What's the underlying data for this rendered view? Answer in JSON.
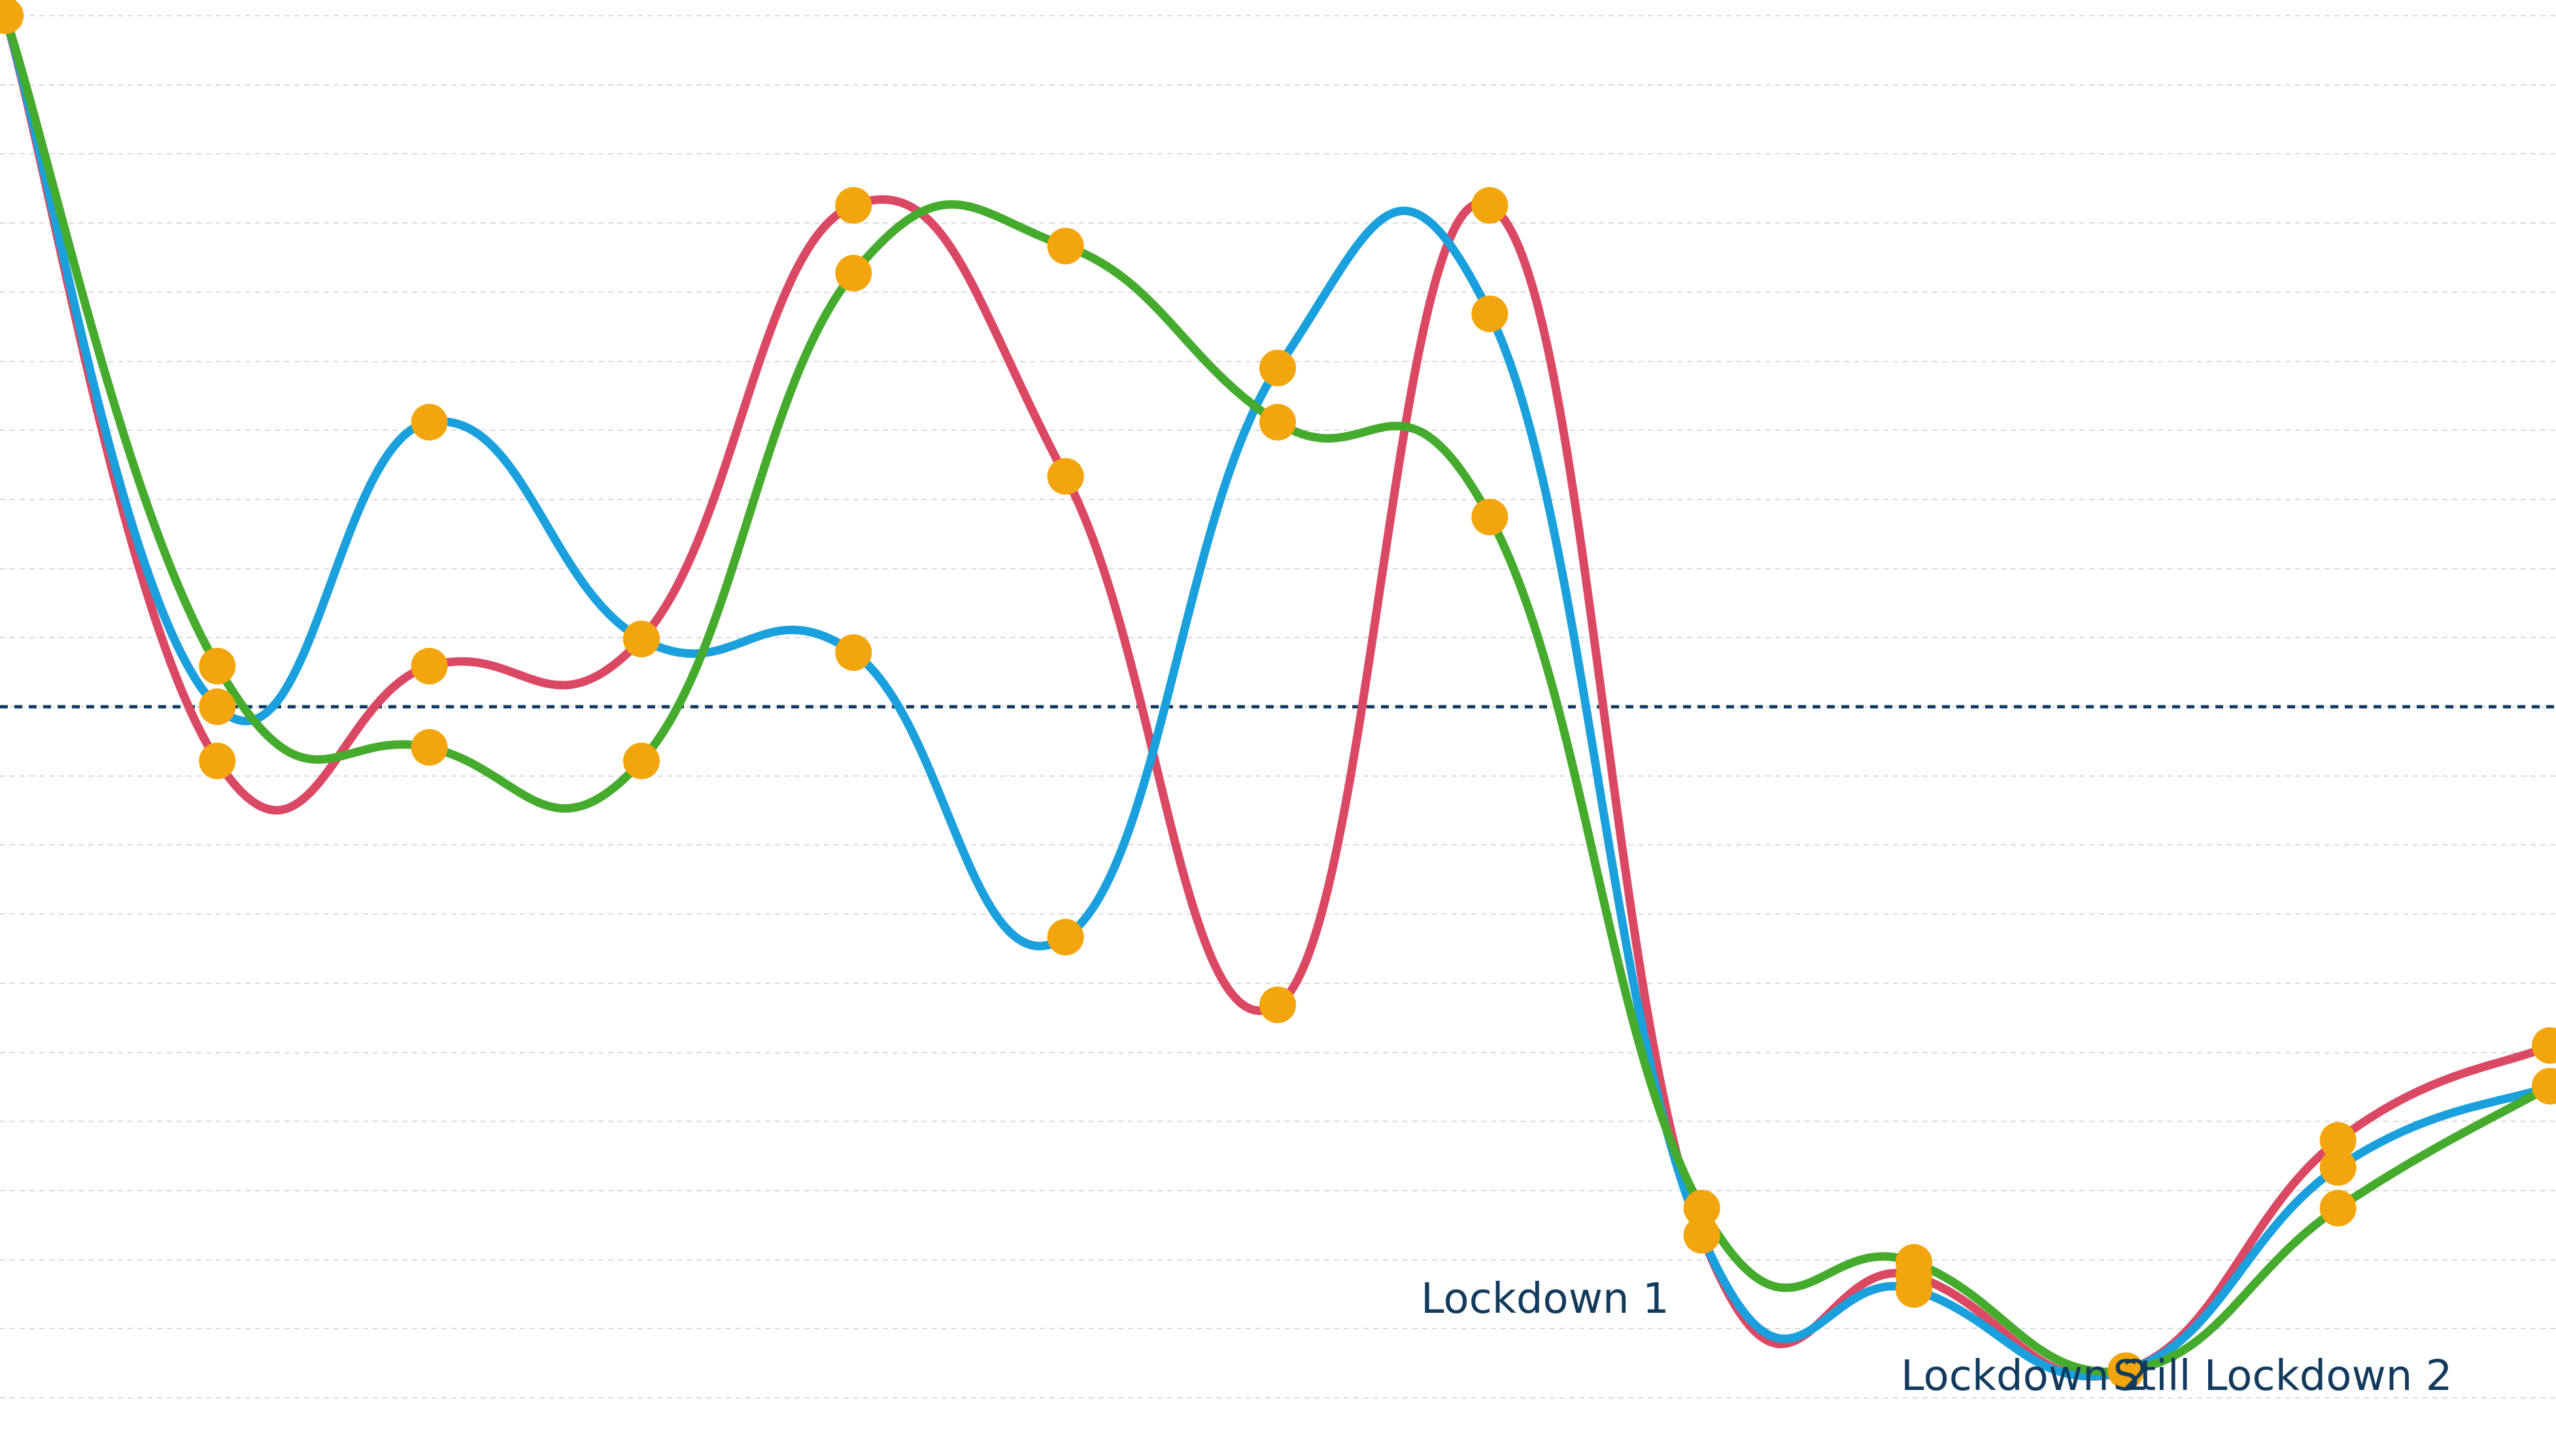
{
  "chart_data": {
    "type": "line",
    "title": "",
    "xlabel": "",
    "ylabel": "",
    "x": [
      0,
      1,
      2,
      3,
      4,
      5,
      6,
      7,
      8,
      9,
      10,
      11,
      12
    ],
    "xlim": [
      0,
      12
    ],
    "ylim": [
      -2.8,
      7.4
    ],
    "grid": true,
    "reference_line": {
      "y": 2.3,
      "style": "dashed",
      "color": "#0f3a5f"
    },
    "marker_color": "#f2a50c",
    "series": [
      {
        "color": "#db4863",
        "values": [
          7.4,
          1.9,
          2.6,
          2.8,
          6.0,
          4.0,
          0.1,
          6.0,
          -1.6,
          -1.9,
          -2.6,
          -0.9,
          -0.2
        ]
      },
      {
        "color": "#1aa0dc",
        "values": [
          7.4,
          2.3,
          4.4,
          2.8,
          2.7,
          0.6,
          4.8,
          5.2,
          -1.6,
          -2.0,
          -2.6,
          -1.1,
          -0.5
        ]
      },
      {
        "color": "#45ab2d",
        "values": [
          7.4,
          2.6,
          2.0,
          1.9,
          5.5,
          5.7,
          4.4,
          3.7,
          -1.4,
          -1.8,
          -2.6,
          -1.4,
          -0.5
        ]
      }
    ],
    "annotations": [
      {
        "text": "Lockdown 1",
        "x": 8
      },
      {
        "text": "Lockdown 2",
        "x": 9
      },
      {
        "text": "Still Lockdown 2",
        "x": 10
      }
    ]
  }
}
